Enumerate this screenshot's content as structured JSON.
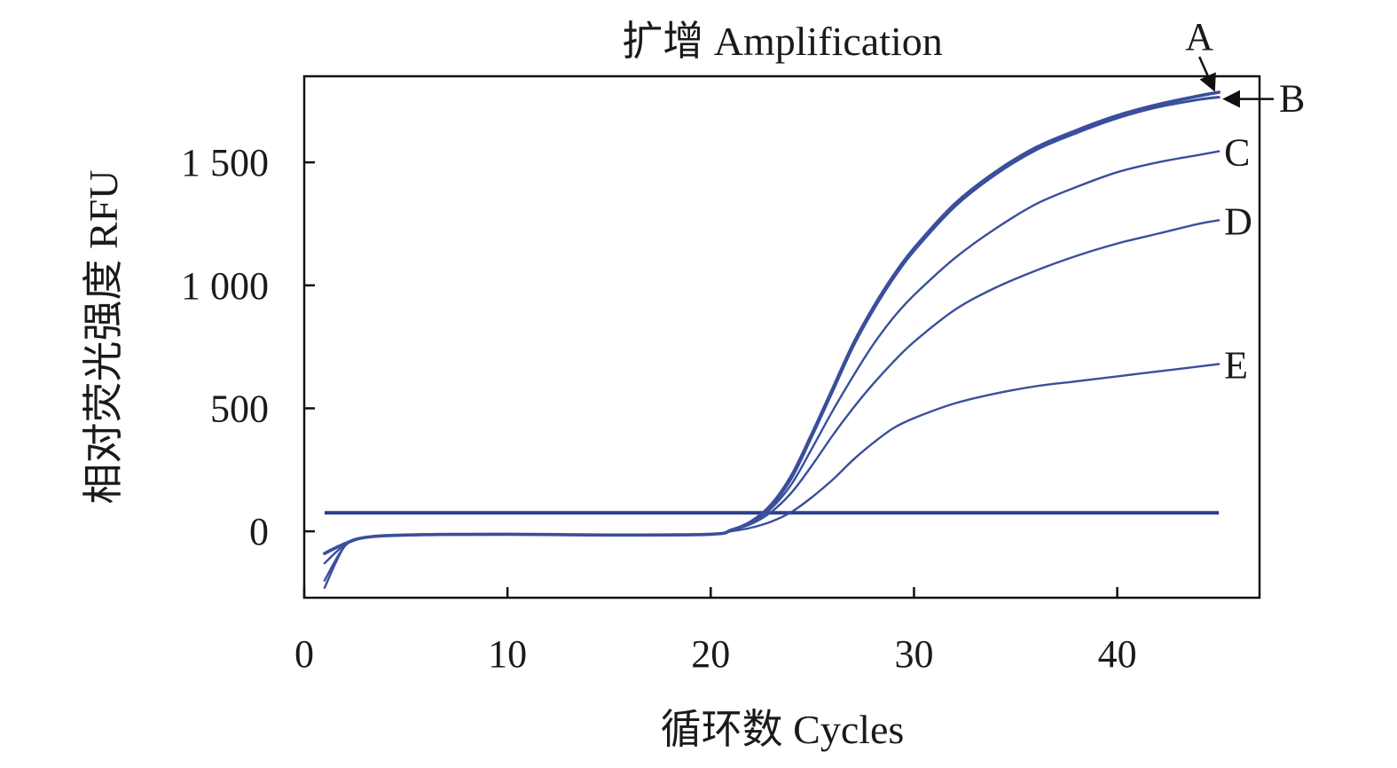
{
  "chart_data": {
    "type": "line",
    "title": "扩增 Amplification",
    "xlabel": "循环数 Cycles",
    "ylabel": "相对荧光强度 RFU",
    "xlim": [
      0,
      47
    ],
    "ylim": [
      -270,
      1850
    ],
    "x_ticks": [
      0,
      10,
      20,
      30,
      40
    ],
    "x_tick_labels": [
      "0",
      "10",
      "20",
      "30",
      "40"
    ],
    "y_ticks": [
      0,
      500,
      1000,
      1500
    ],
    "y_tick_labels": [
      "0",
      "500",
      "1 000",
      "1 500"
    ],
    "grid": false,
    "line_color": "#3a4f9c",
    "threshold": {
      "value": 75,
      "x_start": 1,
      "x_end": 45
    },
    "series": [
      {
        "name": "A",
        "x": [
          1,
          2,
          3,
          5,
          10,
          15,
          20,
          21,
          22,
          23,
          24,
          25,
          26,
          27,
          28,
          29,
          30,
          32,
          34,
          36,
          38,
          40,
          42,
          44,
          45
        ],
        "y": [
          -90,
          -50,
          -25,
          -15,
          -12,
          -15,
          -12,
          5,
          40,
          110,
          230,
          400,
          580,
          760,
          910,
          1040,
          1150,
          1330,
          1460,
          1560,
          1630,
          1690,
          1735,
          1770,
          1785
        ]
      },
      {
        "name": "B",
        "x": [
          1,
          2,
          3,
          5,
          10,
          15,
          20,
          21,
          22,
          23,
          24,
          25,
          26,
          27,
          28,
          29,
          30,
          32,
          34,
          36,
          38,
          40,
          42,
          44,
          45
        ],
        "y": [
          -90,
          -50,
          -25,
          -15,
          -12,
          -15,
          -12,
          5,
          38,
          105,
          220,
          390,
          570,
          750,
          900,
          1030,
          1140,
          1320,
          1450,
          1550,
          1620,
          1680,
          1725,
          1755,
          1765
        ]
      },
      {
        "name": "C",
        "x": [
          1,
          2,
          3,
          5,
          10,
          15,
          20,
          21,
          22,
          23,
          24,
          25,
          26,
          27,
          28,
          29,
          30,
          32,
          34,
          36,
          38,
          40,
          42,
          44,
          45
        ],
        "y": [
          -200,
          -60,
          -25,
          -15,
          -12,
          -15,
          -12,
          5,
          35,
          95,
          195,
          340,
          490,
          630,
          760,
          870,
          960,
          1110,
          1230,
          1330,
          1400,
          1460,
          1500,
          1530,
          1545
        ]
      },
      {
        "name": "D",
        "x": [
          1,
          2,
          3,
          5,
          10,
          15,
          20,
          21,
          22,
          23,
          24,
          25,
          26,
          27,
          28,
          29,
          30,
          32,
          34,
          36,
          38,
          40,
          42,
          44,
          45
        ],
        "y": [
          -130,
          -55,
          -25,
          -15,
          -12,
          -15,
          -12,
          5,
          30,
          80,
          160,
          270,
          390,
          500,
          600,
          690,
          770,
          900,
          990,
          1060,
          1120,
          1170,
          1210,
          1250,
          1265
        ]
      },
      {
        "name": "E",
        "x": [
          1,
          2,
          3,
          5,
          10,
          15,
          20,
          21,
          22,
          23,
          24,
          25,
          26,
          27,
          28,
          29,
          30,
          32,
          34,
          36,
          38,
          40,
          42,
          44,
          45
        ],
        "y": [
          -230,
          -60,
          -25,
          -15,
          -12,
          -15,
          -12,
          0,
          15,
          40,
          80,
          140,
          210,
          290,
          360,
          420,
          460,
          520,
          560,
          590,
          610,
          630,
          650,
          670,
          680
        ]
      }
    ]
  }
}
